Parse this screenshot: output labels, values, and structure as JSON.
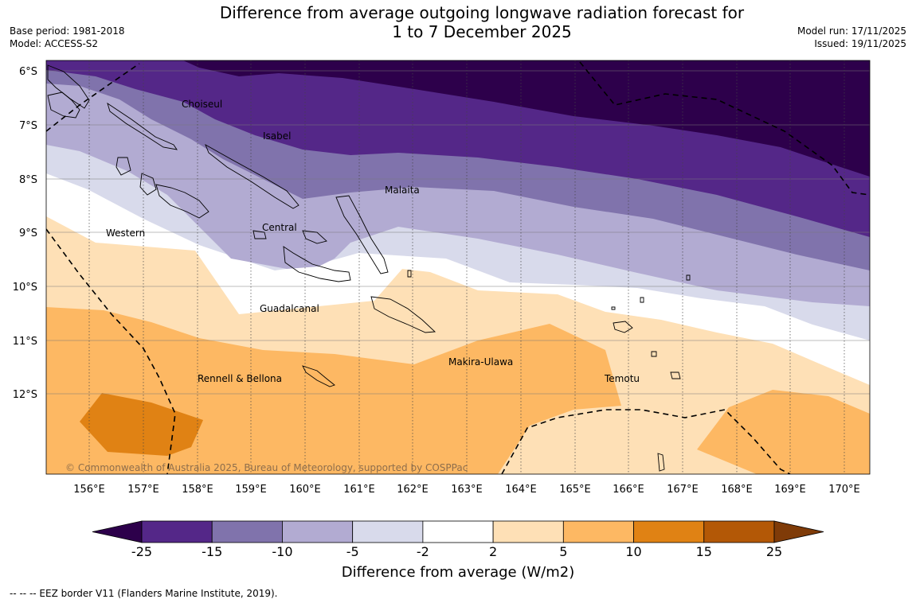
{
  "header": {
    "title_line1": "Difference from average outgoing longwave radiation forecast for",
    "title_line2": "1 to 7 December 2025",
    "base_period": "Base period: 1981-2018",
    "model": "Model: ACCESS-S2",
    "model_run": "Model run: 17/11/2025",
    "issued": "Issued: 19/11/2025"
  },
  "map": {
    "lat_labels": [
      "6°S",
      "7°S",
      "8°S",
      "9°S",
      "10°S",
      "11°S",
      "12°S"
    ],
    "lon_labels": [
      "156°E",
      "157°E",
      "158°E",
      "159°E",
      "160°E",
      "161°E",
      "162°E",
      "163°E",
      "164°E",
      "165°E",
      "166°E",
      "167°E",
      "168°E",
      "169°E",
      "170°E"
    ],
    "region_labels": {
      "choiseul": "Choiseul",
      "isabel": "Isabel",
      "malaita": "Malaita",
      "western": "Western",
      "central": "Central",
      "guadalcanal": "Guadalcanal",
      "rennell_bellona": "Rennell & Bellona",
      "makira_ulawa": "Makira-Ulawa",
      "temotu": "Temotu"
    },
    "copyright": "© Commonwealth of Australia 2025, Bureau of Meteorology, supported by COSPPac"
  },
  "colorbar": {
    "ticks": [
      "-25",
      "-15",
      "-10",
      "-5",
      "-2",
      "2",
      "5",
      "10",
      "15",
      "25"
    ],
    "colors": [
      "#2d004b",
      "#542788",
      "#8073ac",
      "#b2abd2",
      "#d8daeb",
      "#ffffff",
      "#fee0b6",
      "#fdb863",
      "#e08214",
      "#b35806",
      "#7f3b08"
    ],
    "label": "Difference from average (W/m2)"
  },
  "footnote": "--  --  -- EEZ border V11 (Flanders Marine Institute, 2019)."
}
